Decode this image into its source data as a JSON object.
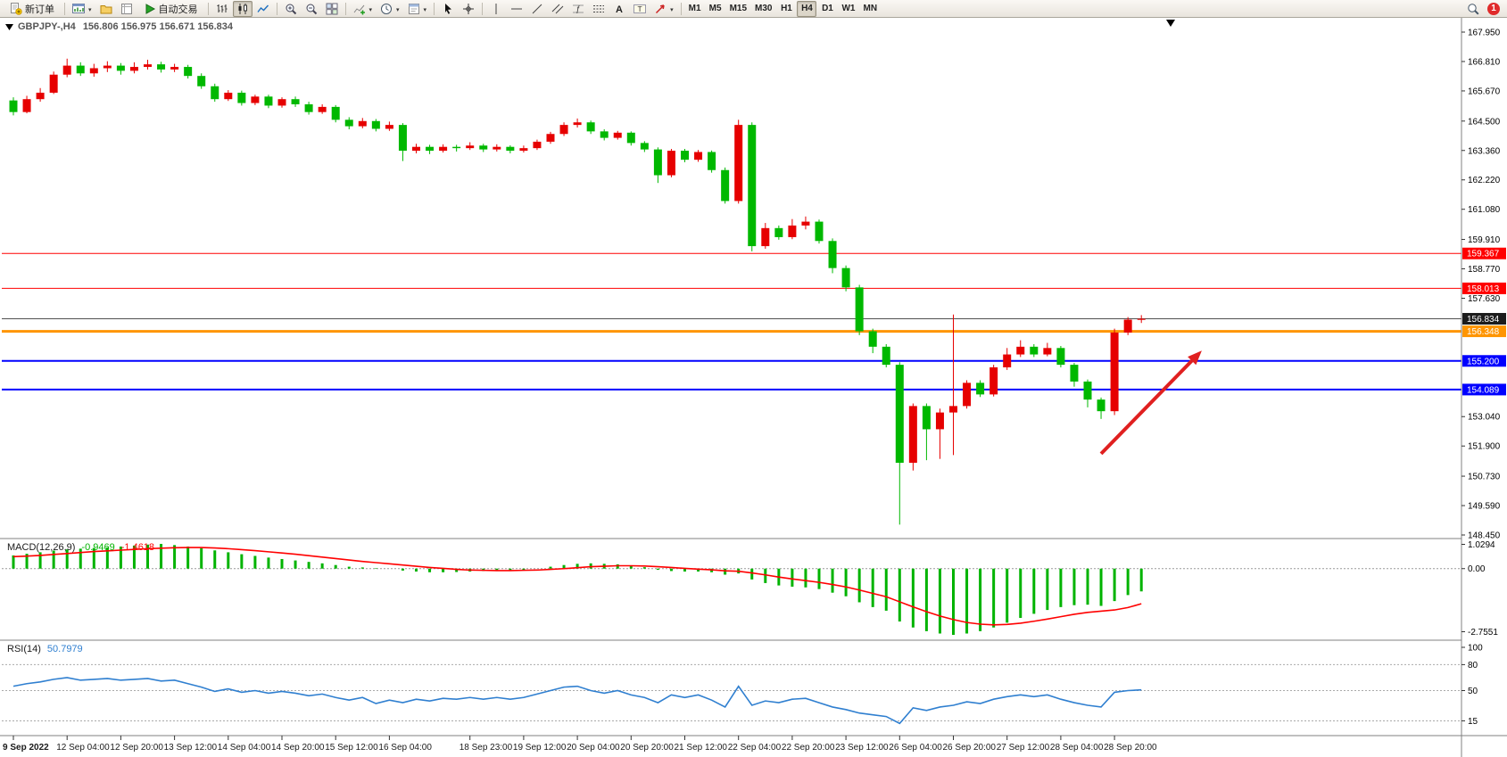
{
  "toolbar": {
    "new_order_label": "新订单",
    "autotrading_label": "自动交易",
    "text_tool_glyph": "A",
    "label_tool_glyph": "T",
    "fibo_glyph": "ƒ",
    "timeframes": [
      "M1",
      "M5",
      "M15",
      "M30",
      "H1",
      "H4",
      "D1",
      "W1",
      "MN"
    ],
    "active_timeframe": "H4",
    "notification_count": "1"
  },
  "chart_data": {
    "type": "candlestick",
    "title": "GBPJPY-,H4",
    "ohlc_display": "156.806 156.975 156.671 156.834",
    "current": {
      "open": 156.806,
      "high": 156.975,
      "low": 156.671,
      "close": 156.834
    },
    "colors": {
      "up": "#e60000",
      "down": "#00b800"
    },
    "price_axis": {
      "min": 148.45,
      "max": 167.95,
      "ticks": [
        "167.950",
        "166.810",
        "165.670",
        "164.500",
        "163.360",
        "162.220",
        "161.080",
        "159.910",
        "158.770",
        "157.630",
        "153.040",
        "151.900",
        "150.730",
        "149.590",
        "148.450"
      ]
    },
    "hlines": [
      {
        "price": 159.367,
        "label": "159.367",
        "color": "#ff0000",
        "label_bg": "#ff0000",
        "width": 1
      },
      {
        "price": 158.013,
        "label": "158.013",
        "color": "#ff0000",
        "label_bg": "#ff0000",
        "width": 1
      },
      {
        "price": 156.834,
        "label": "156.834",
        "color": "#505050",
        "label_bg": "#1c1c1c",
        "width": 1
      },
      {
        "price": 156.348,
        "label": "156.348",
        "color": "#ff9500",
        "label_bg": "#ff9500",
        "width": 3
      },
      {
        "price": 155.2,
        "label": "155.200",
        "color": "#0000ff",
        "label_bg": "#0000ff",
        "width": 2
      },
      {
        "price": 154.089,
        "label": "154.089",
        "color": "#0000ff",
        "label_bg": "#0000ff",
        "width": 2
      }
    ],
    "arrow": {
      "from_idx": 81,
      "from_price": 151.6,
      "to_idx": 88.5,
      "to_price": 155.6,
      "color": "#e02020"
    },
    "candles": [
      [
        165.3,
        165.42,
        164.72,
        164.85
      ],
      [
        164.85,
        165.48,
        164.8,
        165.35
      ],
      [
        165.35,
        165.78,
        165.25,
        165.6
      ],
      [
        165.6,
        166.42,
        165.55,
        166.3
      ],
      [
        166.3,
        166.92,
        166.2,
        166.65
      ],
      [
        166.65,
        166.78,
        166.25,
        166.35
      ],
      [
        166.35,
        166.72,
        166.22,
        166.55
      ],
      [
        166.55,
        166.82,
        166.4,
        166.65
      ],
      [
        166.65,
        166.75,
        166.3,
        166.45
      ],
      [
        166.45,
        166.78,
        166.35,
        166.6
      ],
      [
        166.6,
        166.88,
        166.5,
        166.7
      ],
      [
        166.7,
        166.8,
        166.38,
        166.5
      ],
      [
        166.5,
        166.72,
        166.4,
        166.6
      ],
      [
        166.6,
        166.68,
        166.15,
        166.25
      ],
      [
        166.25,
        166.35,
        165.75,
        165.85
      ],
      [
        165.85,
        165.95,
        165.25,
        165.35
      ],
      [
        165.35,
        165.7,
        165.28,
        165.6
      ],
      [
        165.6,
        165.68,
        165.1,
        165.2
      ],
      [
        165.2,
        165.52,
        165.12,
        165.45
      ],
      [
        165.45,
        165.52,
        165.0,
        165.1
      ],
      [
        165.1,
        165.42,
        165.02,
        165.35
      ],
      [
        165.35,
        165.45,
        165.05,
        165.15
      ],
      [
        165.15,
        165.25,
        164.75,
        164.85
      ],
      [
        164.85,
        165.15,
        164.78,
        165.05
      ],
      [
        165.05,
        165.12,
        164.45,
        164.55
      ],
      [
        164.55,
        164.65,
        164.18,
        164.3
      ],
      [
        164.3,
        164.62,
        164.22,
        164.5
      ],
      [
        164.5,
        164.58,
        164.1,
        164.2
      ],
      [
        164.2,
        164.48,
        164.12,
        164.35
      ],
      [
        164.35,
        164.42,
        162.95,
        163.35
      ],
      [
        163.35,
        163.62,
        163.25,
        163.5
      ],
      [
        163.5,
        163.58,
        163.22,
        163.35
      ],
      [
        163.35,
        163.6,
        163.28,
        163.5
      ],
      [
        163.5,
        163.58,
        163.32,
        163.45
      ],
      [
        163.45,
        163.68,
        163.38,
        163.55
      ],
      [
        163.55,
        163.62,
        163.3,
        163.4
      ],
      [
        163.4,
        163.6,
        163.32,
        163.5
      ],
      [
        163.5,
        163.56,
        163.25,
        163.35
      ],
      [
        163.35,
        163.55,
        163.28,
        163.45
      ],
      [
        163.45,
        163.78,
        163.38,
        163.7
      ],
      [
        163.7,
        164.08,
        163.62,
        164.0
      ],
      [
        164.0,
        164.45,
        163.92,
        164.35
      ],
      [
        164.35,
        164.6,
        164.25,
        164.45
      ],
      [
        164.45,
        164.52,
        164.0,
        164.1
      ],
      [
        164.1,
        164.18,
        163.75,
        163.85
      ],
      [
        163.85,
        164.12,
        163.78,
        164.05
      ],
      [
        164.05,
        164.1,
        163.55,
        163.65
      ],
      [
        163.65,
        163.72,
        163.3,
        163.4
      ],
      [
        163.4,
        163.48,
        162.1,
        162.4
      ],
      [
        162.4,
        163.42,
        162.32,
        163.35
      ],
      [
        163.35,
        163.42,
        162.9,
        163.0
      ],
      [
        163.0,
        163.38,
        162.92,
        163.3
      ],
      [
        163.3,
        163.36,
        162.5,
        162.6
      ],
      [
        162.6,
        162.7,
        161.3,
        161.4
      ],
      [
        161.4,
        164.55,
        161.3,
        164.35
      ],
      [
        164.35,
        164.45,
        159.45,
        159.65
      ],
      [
        159.65,
        160.55,
        159.55,
        160.35
      ],
      [
        160.35,
        160.45,
        159.9,
        160.0
      ],
      [
        160.0,
        160.7,
        159.92,
        160.45
      ],
      [
        160.45,
        160.8,
        160.3,
        160.6
      ],
      [
        160.6,
        160.68,
        159.75,
        159.85
      ],
      [
        159.85,
        159.95,
        158.6,
        158.8
      ],
      [
        158.8,
        158.9,
        157.9,
        158.05
      ],
      [
        158.05,
        158.15,
        156.2,
        156.35
      ],
      [
        156.35,
        156.45,
        155.5,
        155.75
      ],
      [
        155.75,
        155.85,
        154.95,
        155.05
      ],
      [
        155.05,
        155.15,
        148.85,
        151.25
      ],
      [
        151.25,
        153.55,
        150.95,
        153.45
      ],
      [
        153.45,
        153.55,
        151.35,
        152.55
      ],
      [
        152.55,
        153.35,
        151.4,
        153.2
      ],
      [
        153.2,
        157.0,
        151.55,
        153.45
      ],
      [
        153.45,
        154.45,
        153.35,
        154.35
      ],
      [
        154.35,
        154.45,
        153.8,
        153.9
      ],
      [
        153.9,
        155.05,
        153.82,
        154.95
      ],
      [
        154.95,
        155.7,
        154.85,
        155.45
      ],
      [
        155.45,
        156.0,
        155.35,
        155.75
      ],
      [
        155.75,
        155.85,
        155.35,
        155.45
      ],
      [
        155.45,
        155.9,
        155.38,
        155.7
      ],
      [
        155.7,
        155.78,
        154.95,
        155.05
      ],
      [
        155.05,
        155.12,
        154.2,
        154.4
      ],
      [
        154.4,
        154.48,
        153.4,
        153.7
      ],
      [
        153.7,
        153.78,
        152.95,
        153.25
      ],
      [
        153.25,
        156.45,
        153.1,
        156.3
      ],
      [
        156.3,
        156.9,
        156.2,
        156.8
      ],
      [
        156.806,
        156.975,
        156.671,
        156.834
      ]
    ],
    "time_labels": [
      {
        "idx": 0,
        "label": "9 Sep 2022",
        "bold": true
      },
      {
        "idx": 4,
        "label": "12 Sep 04:00"
      },
      {
        "idx": 8,
        "label": "12 Sep 20:00"
      },
      {
        "idx": 12,
        "label": "13 Sep 12:00"
      },
      {
        "idx": 16,
        "label": "14 Sep 04:00"
      },
      {
        "idx": 20,
        "label": "14 Sep 20:00"
      },
      {
        "idx": 24,
        "label": "15 Sep 12:00"
      },
      {
        "idx": 28,
        "label": "16 Sep 04:00"
      },
      {
        "idx": 34,
        "label": "18 Sep 23:00"
      },
      {
        "idx": 38,
        "label": "19 Sep 12:00"
      },
      {
        "idx": 42,
        "label": "20 Sep 04:00"
      },
      {
        "idx": 46,
        "label": "20 Sep 20:00"
      },
      {
        "idx": 50,
        "label": "21 Sep 12:00"
      },
      {
        "idx": 54,
        "label": "22 Sep 04:00"
      },
      {
        "idx": 58,
        "label": "22 Sep 20:00"
      },
      {
        "idx": 62,
        "label": "23 Sep 12:00"
      },
      {
        "idx": 66,
        "label": "26 Sep 04:00"
      },
      {
        "idx": 70,
        "label": "26 Sep 20:00"
      },
      {
        "idx": 74,
        "label": "27 Sep 12:00"
      },
      {
        "idx": 78,
        "label": "28 Sep 04:00"
      },
      {
        "idx": 82,
        "label": "28 Sep 20:00"
      }
    ],
    "macd": {
      "label": "MACD(12,26,9)",
      "value_main": "-0.9469",
      "value_signal": "-1.4618",
      "hist_color": "#00b300",
      "signal_color": "#ff0000",
      "scale": {
        "max": 1.0294,
        "min": -2.7551,
        "ticks": [
          "1.0294",
          "0.00",
          "-2.7551"
        ]
      },
      "histogram": [
        0.55,
        0.62,
        0.68,
        0.75,
        0.8,
        0.83,
        0.86,
        0.88,
        0.92,
        0.96,
        1.0,
        1.03,
        0.98,
        0.92,
        0.85,
        0.76,
        0.68,
        0.6,
        0.53,
        0.46,
        0.4,
        0.34,
        0.28,
        0.22,
        0.15,
        0.08,
        0.05,
        0.02,
        0.0,
        -0.08,
        -0.12,
        -0.15,
        -0.15,
        -0.14,
        -0.12,
        -0.1,
        -0.08,
        -0.07,
        -0.05,
        0.0,
        0.08,
        0.15,
        0.2,
        0.22,
        0.2,
        0.18,
        0.12,
        0.06,
        -0.05,
        -0.1,
        -0.12,
        -0.12,
        -0.15,
        -0.25,
        -0.2,
        -0.45,
        -0.6,
        -0.7,
        -0.75,
        -0.78,
        -0.85,
        -1.0,
        -1.15,
        -1.4,
        -1.6,
        -1.75,
        -2.2,
        -2.45,
        -2.6,
        -2.7,
        -2.7551,
        -2.7,
        -2.6,
        -2.45,
        -2.25,
        -2.05,
        -1.88,
        -1.72,
        -1.6,
        -1.52,
        -1.5,
        -1.55,
        -1.35,
        -1.1,
        -0.9469
      ],
      "signal": [
        0.5,
        0.52,
        0.55,
        0.59,
        0.63,
        0.67,
        0.71,
        0.74,
        0.77,
        0.8,
        0.83,
        0.85,
        0.87,
        0.88,
        0.88,
        0.86,
        0.83,
        0.79,
        0.75,
        0.7,
        0.65,
        0.6,
        0.54,
        0.48,
        0.42,
        0.36,
        0.3,
        0.25,
        0.2,
        0.15,
        0.1,
        0.05,
        0.01,
        -0.03,
        -0.06,
        -0.07,
        -0.08,
        -0.08,
        -0.07,
        -0.06,
        -0.03,
        0.0,
        0.04,
        0.08,
        0.1,
        0.12,
        0.12,
        0.11,
        0.08,
        0.05,
        0.01,
        -0.02,
        -0.05,
        -0.09,
        -0.11,
        -0.18,
        -0.26,
        -0.35,
        -0.43,
        -0.5,
        -0.57,
        -0.66,
        -0.76,
        -0.89,
        -1.03,
        -1.17,
        -1.38,
        -1.59,
        -1.79,
        -1.97,
        -2.12,
        -2.24,
        -2.31,
        -2.34,
        -2.32,
        -2.27,
        -2.19,
        -2.1,
        -2.0,
        -1.9,
        -1.82,
        -1.77,
        -1.72,
        -1.62,
        -1.4618
      ]
    },
    "rsi": {
      "label": "RSI(14)",
      "value": "50.7979",
      "color": "#2f7fd0",
      "levels": [
        100,
        80,
        50,
        15
      ],
      "series": [
        55,
        58,
        60,
        63,
        65,
        62,
        63,
        64,
        62,
        63,
        64,
        61,
        62,
        58,
        54,
        49,
        52,
        48,
        50,
        47,
        49,
        47,
        44,
        46,
        42,
        39,
        42,
        35,
        39,
        36,
        40,
        38,
        41,
        40,
        42,
        40,
        42,
        40,
        42,
        46,
        50,
        54,
        55,
        50,
        47,
        50,
        45,
        42,
        36,
        45,
        42,
        45,
        39,
        31,
        55,
        33,
        38,
        36,
        40,
        41,
        36,
        31,
        28,
        24,
        22,
        20,
        12,
        30,
        27,
        31,
        33,
        37,
        35,
        40,
        43,
        45,
        43,
        45,
        40,
        36,
        33,
        31,
        48,
        50,
        50.7979
      ]
    }
  }
}
